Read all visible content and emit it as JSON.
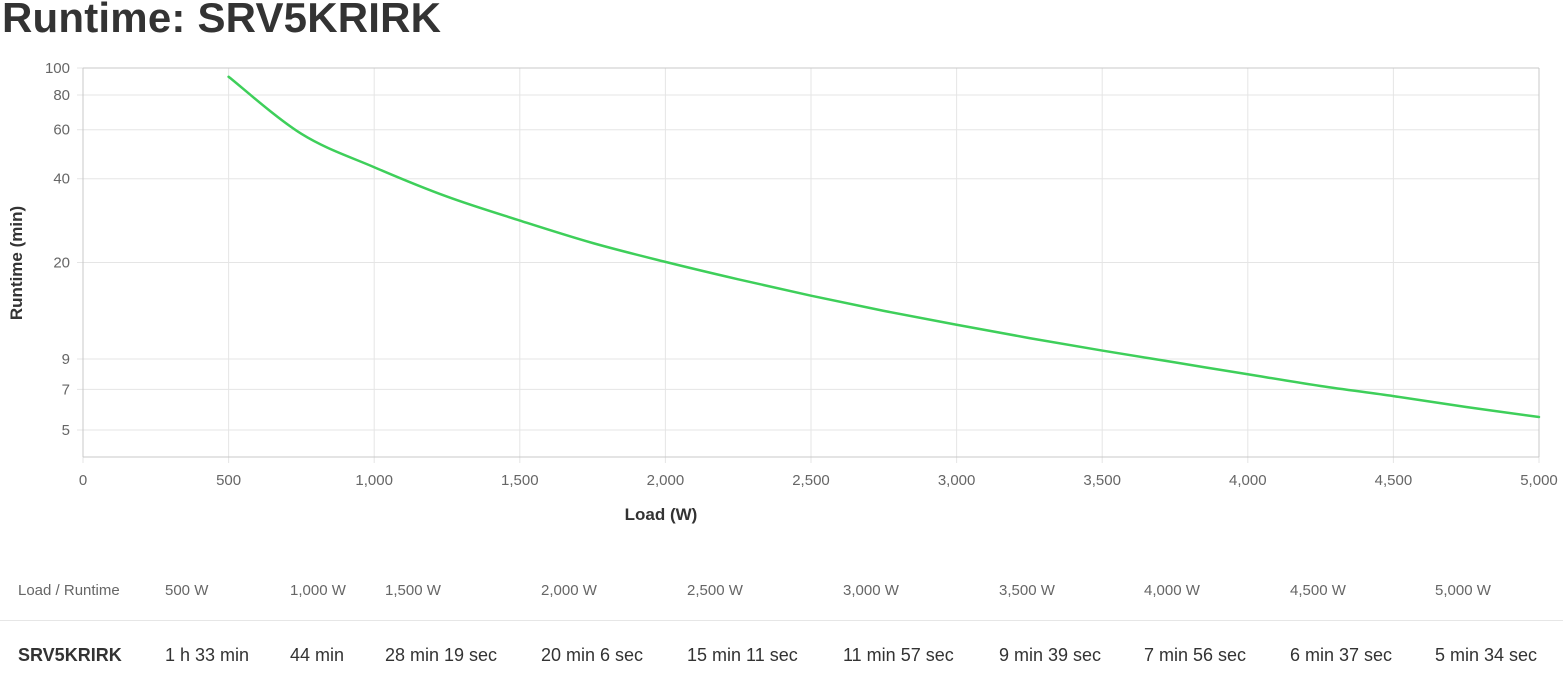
{
  "page": {
    "title": "Runtime: SRV5KRIRK"
  },
  "colors": {
    "series": "#3ecf5a",
    "grid": "#e5e5e5",
    "axis": "#c8c8c8",
    "tick": "#666666"
  },
  "chart_data": {
    "type": "line",
    "xlabel": "Load (W)",
    "ylabel": "Runtime (min)",
    "xlim": [
      0,
      5000
    ],
    "ylim": [
      4,
      100
    ],
    "yscale": "log",
    "grid": true,
    "x_ticks": [
      0,
      500,
      1000,
      1500,
      2000,
      2500,
      3000,
      3500,
      4000,
      4500,
      5000
    ],
    "x_tick_labels": [
      "0",
      "500",
      "1,000",
      "1,500",
      "2,000",
      "2,500",
      "3,000",
      "3,500",
      "4,000",
      "4,500",
      "5,000"
    ],
    "y_ticks": [
      5,
      7,
      9,
      20,
      40,
      60,
      80,
      100
    ],
    "y_tick_labels": [
      "5",
      "7",
      "9",
      "20",
      "40",
      "60",
      "80",
      "100"
    ],
    "series": [
      {
        "x": [
          500,
          750,
          1000,
          1250,
          1500,
          1750,
          2000,
          2250,
          2500,
          2750,
          3000,
          3250,
          3500,
          3750,
          4000,
          4250,
          4500,
          4750,
          5000
        ],
        "values": [
          93,
          58,
          44,
          34.5,
          28.3,
          23.5,
          20.1,
          17.4,
          15.2,
          13.4,
          11.95,
          10.7,
          9.65,
          8.75,
          7.93,
          7.2,
          6.62,
          6.05,
          5.57
        ]
      }
    ]
  },
  "runtime_table": {
    "header_label": "Load / Runtime",
    "loads": [
      "500 W",
      "1,000 W",
      "1,500 W",
      "2,000 W",
      "2,500 W",
      "3,000 W",
      "3,500 W",
      "4,000 W",
      "4,500 W",
      "5,000 W"
    ],
    "model": "SRV5KRIRK",
    "runtimes": [
      "1 h 33 min",
      "44 min",
      "28 min 19 sec",
      "20 min 6 sec",
      "15 min 11 sec",
      "11 min 57 sec",
      "9 min 39 sec",
      "7 min 56 sec",
      "6 min 37 sec",
      "5 min 34 sec"
    ]
  }
}
